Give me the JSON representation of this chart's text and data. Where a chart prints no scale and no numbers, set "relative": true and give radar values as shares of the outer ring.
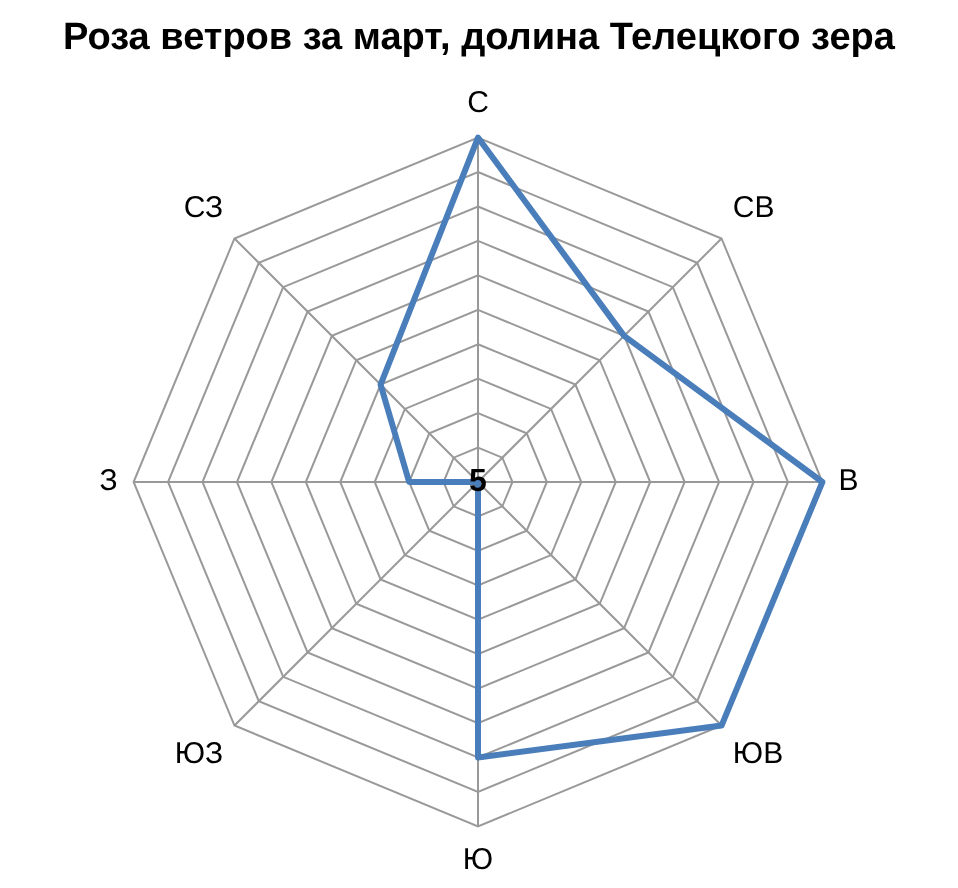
{
  "chart_data": {
    "type": "radar",
    "title": "Роза ветров за март, долина Телецкого зера",
    "relative": true,
    "categories": [
      "С",
      "СВ",
      "В",
      "ЮВ",
      "Ю",
      "ЮЗ",
      "З",
      "СЗ"
    ],
    "series": [
      {
        "color": "#4a7ebb",
        "values": [
          1.0,
          0.6,
          1.0,
          1.0,
          0.8,
          0,
          0.2,
          0.4
        ]
      }
    ],
    "marker": "none",
    "legend": false,
    "grid": true,
    "annotations": [
      "5"
    ]
  }
}
